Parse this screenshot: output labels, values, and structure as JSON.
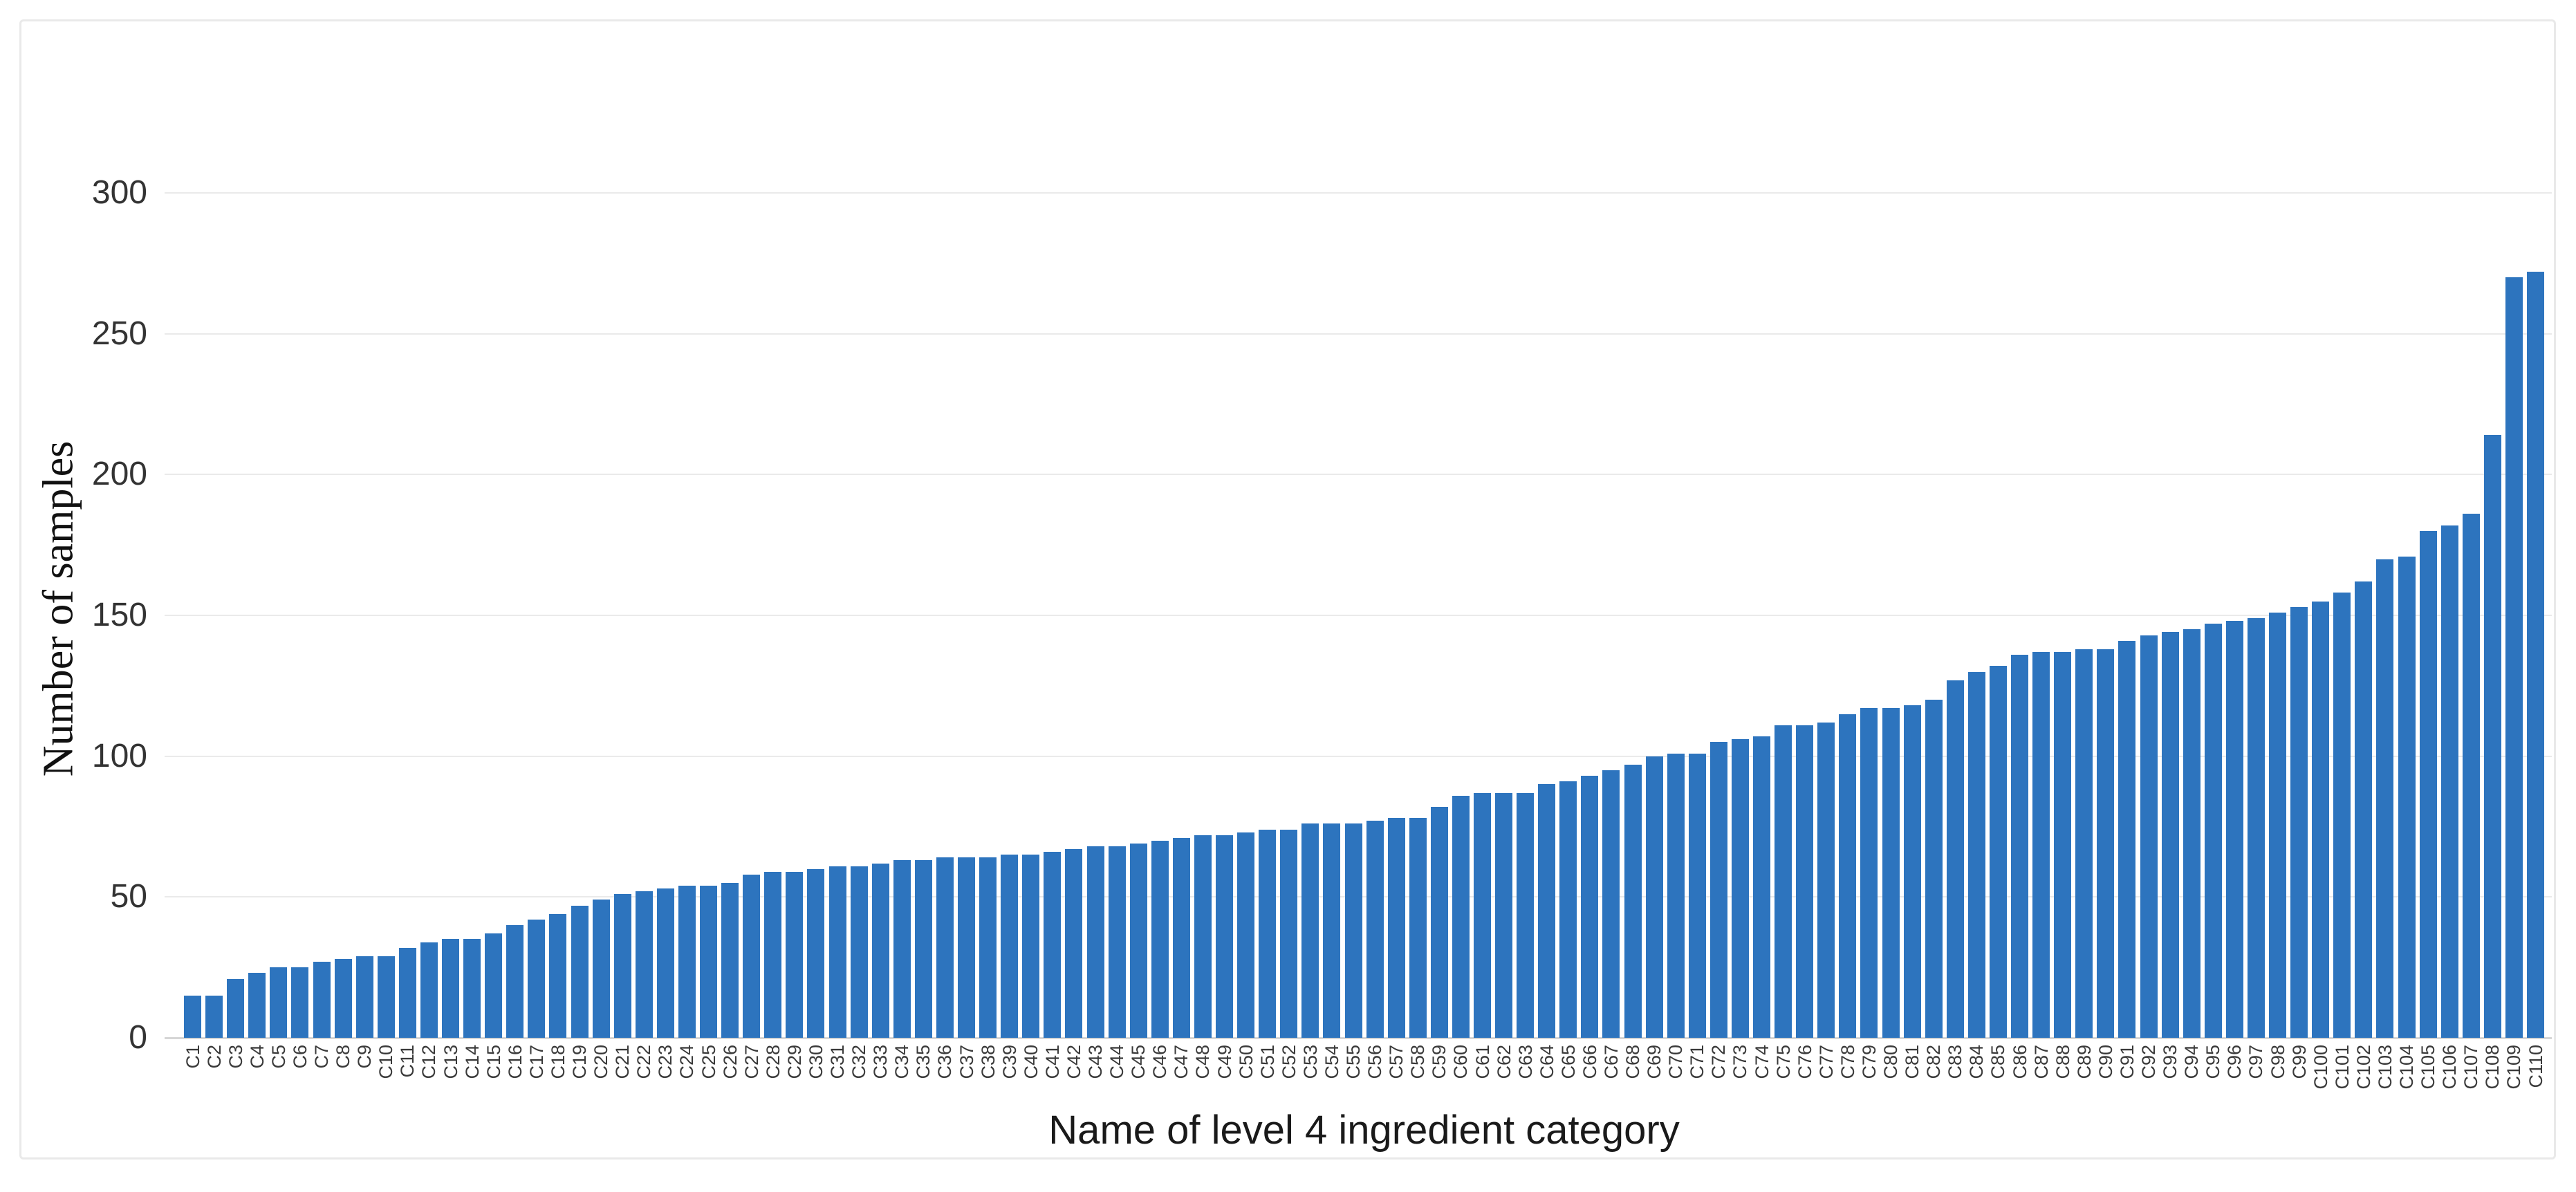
{
  "figure": {
    "background_color": "#ffffff",
    "frame_border_color": "#e9e9e9"
  },
  "chart_data": {
    "type": "bar",
    "title": "",
    "xlabel": "Name of level 4 ingredient category",
    "ylabel": "Number of samples",
    "bar_color": "#2d74be",
    "grid": true,
    "gridline_color": "#eaeaea",
    "axisline_color": "#d6d6d6",
    "legend": "none",
    "ylim": [
      0,
      300
    ],
    "yticks": [
      0,
      50,
      100,
      150,
      200,
      250,
      300
    ],
    "ytick_labels": [
      "0",
      "50",
      "100",
      "150",
      "200",
      "250",
      "300"
    ],
    "categories": [
      "C1",
      "C2",
      "C3",
      "C4",
      "C5",
      "C6",
      "C7",
      "C8",
      "C9",
      "C10",
      "C11",
      "C12",
      "C13",
      "C14",
      "C15",
      "C16",
      "C17",
      "C18",
      "C19",
      "C20",
      "C21",
      "C22",
      "C23",
      "C24",
      "C25",
      "C26",
      "C27",
      "C28",
      "C29",
      "C30",
      "C31",
      "C32",
      "C33",
      "C34",
      "C35",
      "C36",
      "C37",
      "C38",
      "C39",
      "C40",
      "C41",
      "C42",
      "C43",
      "C44",
      "C45",
      "C46",
      "C47",
      "C48",
      "C49",
      "C50",
      "C51",
      "C52",
      "C53",
      "C54",
      "C55",
      "C56",
      "C57",
      "C58",
      "C59",
      "C60",
      "C61",
      "C62",
      "C63",
      "C64",
      "C65",
      "C66",
      "C67",
      "C68",
      "C69",
      "C70",
      "C71",
      "C72",
      "C73",
      "C74",
      "C75",
      "C76",
      "C77",
      "C78",
      "C79",
      "C80",
      "C81",
      "C82",
      "C83",
      "C84",
      "C85",
      "C86",
      "C87",
      "C88",
      "C89",
      "C90",
      "C91",
      "C92",
      "C93",
      "C94",
      "C95",
      "C96",
      "C97",
      "C98",
      "C99",
      "C100",
      "C101",
      "C102",
      "C103",
      "C104",
      "C105",
      "C106",
      "C107",
      "C108",
      "C109",
      "C110"
    ],
    "values": [
      15,
      15,
      21,
      23,
      25,
      25,
      27,
      28,
      29,
      29,
      32,
      34,
      35,
      35,
      37,
      40,
      42,
      44,
      47,
      49,
      51,
      52,
      53,
      54,
      54,
      55,
      58,
      59,
      59,
      60,
      61,
      61,
      62,
      63,
      63,
      64,
      64,
      64,
      65,
      65,
      66,
      67,
      68,
      68,
      69,
      70,
      71,
      72,
      72,
      73,
      74,
      74,
      76,
      76,
      76,
      77,
      78,
      78,
      82,
      86,
      87,
      87,
      87,
      90,
      91,
      93,
      95,
      97,
      100,
      101,
      101,
      105,
      106,
      107,
      111,
      111,
      112,
      115,
      117,
      117,
      118,
      120,
      127,
      130,
      132,
      136,
      137,
      137,
      138,
      138,
      141,
      143,
      144,
      145,
      147,
      148,
      149,
      151,
      153,
      155,
      158,
      162,
      170,
      171,
      180,
      182,
      186,
      214,
      270,
      272
    ]
  }
}
